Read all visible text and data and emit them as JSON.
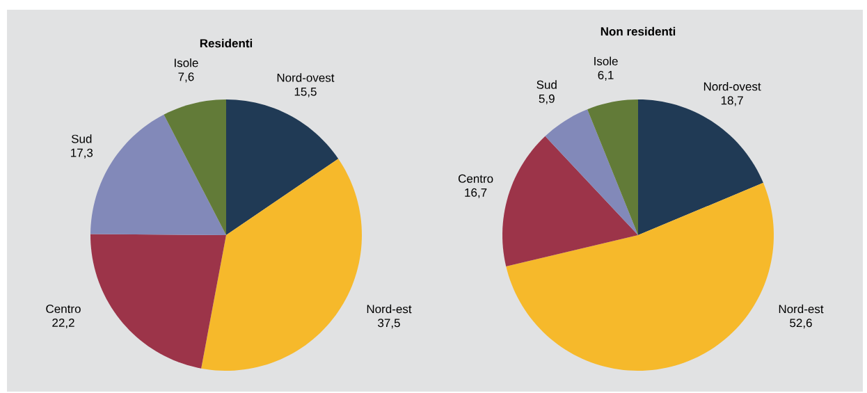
{
  "chart_data": [
    {
      "type": "pie",
      "title": "Residenti",
      "categories": [
        "Nord-ovest",
        "Nord-est",
        "Centro",
        "Sud",
        "Isole"
      ],
      "values": [
        15.5,
        37.5,
        22.2,
        17.3,
        7.6
      ],
      "value_labels": [
        "15,5",
        "37,5",
        "22,2",
        "17,3",
        "7,6"
      ],
      "colors": [
        "#203a55",
        "#f6b92b",
        "#9c3449",
        "#8289b9",
        "#627b38"
      ]
    },
    {
      "type": "pie",
      "title": "Non residenti",
      "categories": [
        "Nord-ovest",
        "Nord-est",
        "Centro",
        "Sud",
        "Isole"
      ],
      "values": [
        18.7,
        52.6,
        16.7,
        5.9,
        6.1
      ],
      "value_labels": [
        "18,7",
        "52,6",
        "16,7",
        "5,9",
        "6,1"
      ],
      "colors": [
        "#203a55",
        "#f6b92b",
        "#9c3449",
        "#8289b9",
        "#627b38"
      ]
    }
  ]
}
